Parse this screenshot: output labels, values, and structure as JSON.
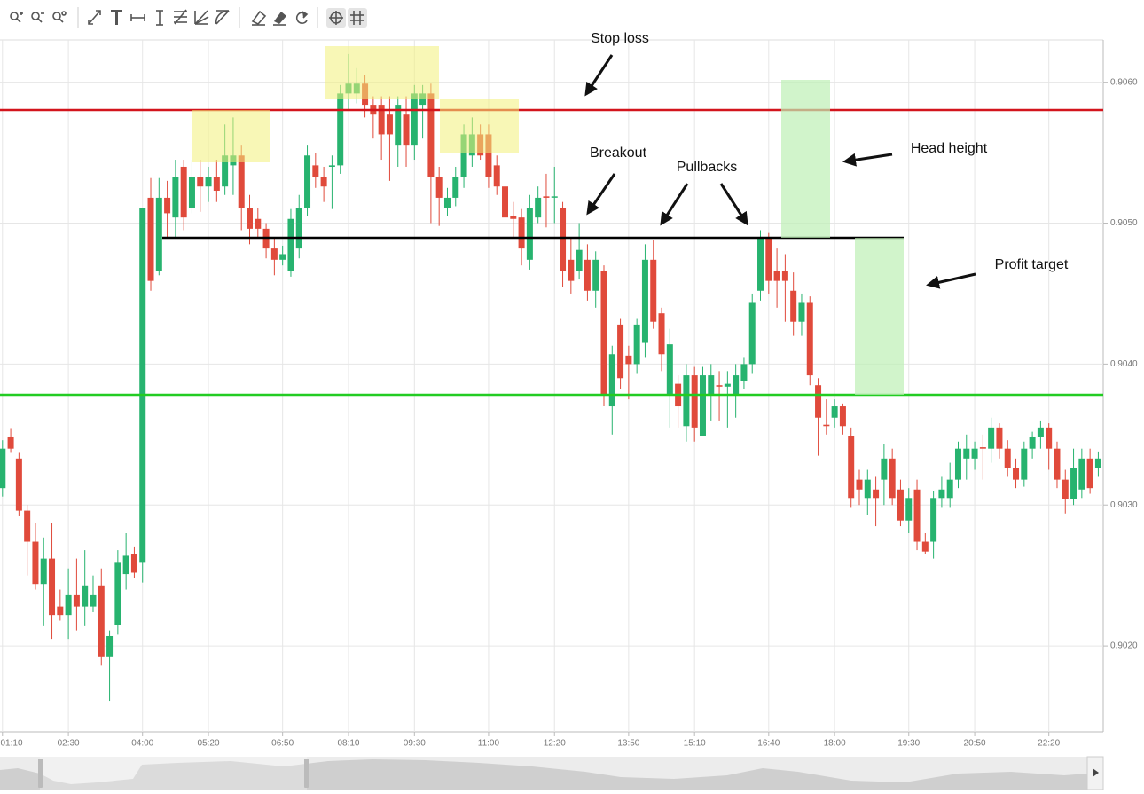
{
  "chart_data": {
    "type": "candlestick",
    "x": [
      "01:10",
      "01:20",
      "01:30",
      "01:40",
      "01:50",
      "02:00",
      "02:10",
      "02:20",
      "02:30",
      "02:40",
      "02:50",
      "03:00",
      "03:10",
      "03:20",
      "03:30",
      "03:40",
      "03:50",
      "04:00",
      "04:10",
      "04:20",
      "04:30",
      "04:40",
      "04:50",
      "05:00",
      "05:10",
      "05:20",
      "05:30",
      "05:40",
      "05:50",
      "06:00",
      "06:10",
      "06:20",
      "06:30",
      "06:40",
      "06:50",
      "07:00",
      "07:10",
      "07:20",
      "07:30",
      "07:40",
      "07:50",
      "08:00",
      "08:10",
      "08:20",
      "08:30",
      "08:40",
      "08:50",
      "09:00",
      "09:10",
      "09:20",
      "09:30",
      "09:40",
      "09:50",
      "10:00",
      "10:10",
      "10:20",
      "10:30",
      "10:40",
      "10:50",
      "11:00",
      "11:10",
      "11:20",
      "11:30",
      "11:40",
      "11:50",
      "12:00",
      "12:10",
      "12:20",
      "12:30",
      "12:40",
      "12:50",
      "13:00",
      "13:10",
      "13:20",
      "13:30",
      "13:40",
      "13:50",
      "14:00",
      "14:10",
      "14:20",
      "14:30",
      "14:40",
      "14:50",
      "15:00",
      "15:10",
      "15:20",
      "15:30",
      "15:40",
      "15:50",
      "16:00",
      "16:10",
      "16:20",
      "16:30",
      "16:40",
      "16:50",
      "17:00",
      "17:10",
      "17:20",
      "17:30",
      "17:40",
      "17:50",
      "18:00",
      "18:10",
      "18:20",
      "18:30",
      "18:40",
      "18:50",
      "19:00",
      "19:10",
      "19:20",
      "19:30",
      "19:40",
      "19:50",
      "20:00",
      "20:10",
      "20:20",
      "20:30",
      "20:40",
      "20:50",
      "21:00",
      "21:10",
      "21:20",
      "21:30",
      "21:40",
      "21:50",
      "22:00",
      "22:10",
      "22:20",
      "22:30",
      "22:40",
      "22:50",
      "23:00",
      "23:10",
      "23:20"
    ],
    "open": [
      0.90312,
      0.90348,
      0.90333,
      0.90296,
      0.90274,
      0.90244,
      0.90262,
      0.90228,
      0.90222,
      0.90236,
      0.90228,
      0.90228,
      0.90243,
      0.90192,
      0.90215,
      0.90251,
      0.90265,
      0.90259,
      0.90518,
      0.90466,
      0.90518,
      0.90504,
      0.9054,
      0.90511,
      0.90533,
      0.90526,
      0.90533,
      0.90526,
      0.90541,
      0.90548,
      0.90511,
      0.90503,
      0.90496,
      0.90482,
      0.90474,
      0.90466,
      0.90482,
      0.90511,
      0.90541,
      0.90533,
      0.9054,
      0.90541,
      0.90592,
      0.90592,
      0.90599,
      0.90584,
      0.90584,
      0.90577,
      0.90555,
      0.90577,
      0.90555,
      0.90584,
      0.90592,
      0.90533,
      0.90511,
      0.90518,
      0.90533,
      0.90548,
      0.90563,
      0.90563,
      0.90541,
      0.90526,
      0.90505,
      0.90504,
      0.90474,
      0.90504,
      0.90519,
      0.90519,
      0.90511,
      0.90474,
      0.90466,
      0.90474,
      0.90452,
      0.90466,
      0.9037,
      0.90428,
      0.90406,
      0.904,
      0.90415,
      0.90474,
      0.90436,
      0.90378,
      0.90386,
      0.90356,
      0.90392,
      0.90349,
      0.90378,
      0.90385,
      0.90384,
      0.90378,
      0.90388,
      0.904,
      0.90452,
      0.90489,
      0.90466,
      0.90466,
      0.90452,
      0.9043,
      0.90444,
      0.90385,
      0.90357,
      0.90362,
      0.9037,
      0.90349,
      0.90318,
      0.90305,
      0.90311,
      0.90318,
      0.90333,
      0.90311,
      0.90289,
      0.90311,
      0.90274,
      0.90274,
      0.90305,
      0.90305,
      0.90318,
      0.90333,
      0.90333,
      0.90341,
      0.9034,
      0.90355,
      0.9034,
      0.90326,
      0.90318,
      0.9034,
      0.90348,
      0.90355,
      0.9034,
      0.90318,
      0.90304,
      0.90311,
      0.90333,
      0.90326
    ],
    "high": [
      0.90346,
      0.90354,
      0.90337,
      0.903,
      0.90287,
      0.90277,
      0.90287,
      0.9024,
      0.90255,
      0.90262,
      0.90268,
      0.9025,
      0.90255,
      0.90211,
      0.90268,
      0.9028,
      0.9027,
      0.90511,
      0.90532,
      0.90532,
      0.9053,
      0.90545,
      0.90545,
      0.90545,
      0.90545,
      0.9054,
      0.90545,
      0.9057,
      0.90575,
      0.90555,
      0.9052,
      0.90511,
      0.905,
      0.9049,
      0.90484,
      0.9051,
      0.9052,
      0.90555,
      0.9055,
      0.9054,
      0.90548,
      0.90598,
      0.9062,
      0.9061,
      0.90605,
      0.9059,
      0.9059,
      0.9059,
      0.9059,
      0.9059,
      0.90598,
      0.90598,
      0.90599,
      0.9054,
      0.90525,
      0.9054,
      0.9057,
      0.90575,
      0.9057,
      0.9057,
      0.90548,
      0.90532,
      0.90515,
      0.9051,
      0.9052,
      0.90526,
      0.90535,
      0.9054,
      0.90515,
      0.9049,
      0.905,
      0.90485,
      0.9048,
      0.9047,
      0.90413,
      0.90432,
      0.90413,
      0.90432,
      0.90485,
      0.90488,
      0.9044,
      0.90425,
      0.90392,
      0.904,
      0.90398,
      0.90398,
      0.904,
      0.90395,
      0.90395,
      0.904,
      0.90405,
      0.9045,
      0.90495,
      0.90493,
      0.90482,
      0.90478,
      0.90465,
      0.9045,
      0.90448,
      0.9039,
      0.90375,
      0.90375,
      0.90372,
      0.90355,
      0.90325,
      0.90325,
      0.9032,
      0.90343,
      0.9034,
      0.90318,
      0.90312,
      0.90318,
      0.9028,
      0.9031,
      0.9032,
      0.9033,
      0.90345,
      0.9035,
      0.90345,
      0.9035,
      0.90362,
      0.90358,
      0.90346,
      0.90333,
      0.90345,
      0.90352,
      0.9036,
      0.90358,
      0.90345,
      0.90325,
      0.9034,
      0.9034,
      0.9034,
      0.90338
    ],
    "low": [
      0.90306,
      0.90337,
      0.90292,
      0.9025,
      0.9024,
      0.90214,
      0.90205,
      0.90218,
      0.90205,
      0.90211,
      0.90214,
      0.90224,
      0.90186,
      0.90161,
      0.90208,
      0.9024,
      0.90248,
      0.90245,
      0.90452,
      0.90463,
      0.9049,
      0.9049,
      0.90495,
      0.90507,
      0.90508,
      0.90515,
      0.90515,
      0.9052,
      0.9052,
      0.90495,
      0.90485,
      0.9049,
      0.90475,
      0.90463,
      0.9047,
      0.90462,
      0.90475,
      0.90505,
      0.90525,
      0.90515,
      0.9051,
      0.90535,
      0.9058,
      0.90585,
      0.90575,
      0.9056,
      0.90545,
      0.9053,
      0.9054,
      0.9054,
      0.90545,
      0.9056,
      0.905,
      0.90498,
      0.90505,
      0.90512,
      0.90525,
      0.9054,
      0.90545,
      0.90525,
      0.9052,
      0.90495,
      0.9049,
      0.9047,
      0.90467,
      0.905,
      0.90497,
      0.905,
      0.90455,
      0.9045,
      0.9046,
      0.90445,
      0.9044,
      0.9037,
      0.9035,
      0.90382,
      0.90375,
      0.90393,
      0.90405,
      0.90425,
      0.90395,
      0.90355,
      0.90355,
      0.90345,
      0.90345,
      0.90349,
      0.9036,
      0.9036,
      0.90355,
      0.90362,
      0.90382,
      0.90393,
      0.90445,
      0.9045,
      0.9044,
      0.9043,
      0.9042,
      0.9042,
      0.90385,
      0.90335,
      0.9035,
      0.90355,
      0.9035,
      0.90298,
      0.903,
      0.90293,
      0.90285,
      0.903,
      0.903,
      0.90285,
      0.9028,
      0.90268,
      0.90265,
      0.90262,
      0.90298,
      0.90298,
      0.90312,
      0.90318,
      0.90325,
      0.90318,
      0.9033,
      0.90333,
      0.9032,
      0.90312,
      0.90313,
      0.90333,
      0.9034,
      0.90325,
      0.90312,
      0.90294,
      0.903,
      0.90305,
      0.90308,
      0.9032
    ],
    "close": [
      0.9034,
      0.9034,
      0.90296,
      0.90274,
      0.90244,
      0.90262,
      0.90222,
      0.90222,
      0.90236,
      0.90228,
      0.90243,
      0.90236,
      0.90192,
      0.90207,
      0.90259,
      0.90264,
      0.90252,
      0.90511,
      0.90459,
      0.90518,
      0.90507,
      0.90533,
      0.90504,
      0.90533,
      0.90526,
      0.90533,
      0.90523,
      0.90548,
      0.90548,
      0.90511,
      0.90496,
      0.90496,
      0.90482,
      0.90474,
      0.90478,
      0.90503,
      0.90511,
      0.90548,
      0.90533,
      0.90526,
      0.90541,
      0.90592,
      0.90599,
      0.90599,
      0.90584,
      0.90577,
      0.90563,
      0.90563,
      0.90584,
      0.90555,
      0.90592,
      0.90592,
      0.90533,
      0.90518,
      0.90518,
      0.90533,
      0.90563,
      0.90563,
      0.90548,
      0.90533,
      0.90526,
      0.90504,
      0.90503,
      0.90482,
      0.90511,
      0.90518,
      0.90518,
      0.90519,
      0.90466,
      0.90459,
      0.90481,
      0.90452,
      0.90474,
      0.90378,
      0.90407,
      0.9039,
      0.904,
      0.90428,
      0.90474,
      0.9043,
      0.90407,
      0.90414,
      0.9037,
      0.90392,
      0.90355,
      0.90392,
      0.90392,
      0.90384,
      0.90386,
      0.90392,
      0.904,
      0.90444,
      0.90489,
      0.90459,
      0.90459,
      0.90459,
      0.9043,
      0.90444,
      0.90392,
      0.90362,
      0.90356,
      0.9037,
      0.90356,
      0.90305,
      0.90311,
      0.90318,
      0.90305,
      0.90333,
      0.90305,
      0.90289,
      0.90305,
      0.90274,
      0.90267,
      0.90305,
      0.90311,
      0.90318,
      0.9034,
      0.9034,
      0.9034,
      0.9034,
      0.90355,
      0.9034,
      0.90326,
      0.90318,
      0.9034,
      0.90348,
      0.90355,
      0.9034,
      0.90318,
      0.90304,
      0.90326,
      0.90333,
      0.90312,
      0.90333
    ],
    "up_color": "#27b36f",
    "down_color": "#e04a3b",
    "xlim": [
      "01:07",
      "23:26"
    ],
    "xticks": [
      "01:10",
      "02:30",
      "04:00",
      "05:20",
      "06:50",
      "08:10",
      "09:30",
      "11:00",
      "12:20",
      "13:50",
      "15:10",
      "16:40",
      "18:00",
      "19:30",
      "20:50",
      "22:20"
    ],
    "ylim": [
      0.90139,
      0.9063
    ],
    "yticks": [
      {
        "value": 0.906,
        "label": "0.9060"
      },
      {
        "value": 0.905,
        "label": "0.9050"
      },
      {
        "value": 0.904,
        "label": "0.9040"
      },
      {
        "value": 0.903,
        "label": "0.9030"
      },
      {
        "value": 0.902,
        "label": "0.9020"
      }
    ],
    "grid": true,
    "annotations": [
      "Stop loss",
      "Breakout",
      "Pullbacks",
      "Head height",
      "Profit target"
    ]
  }
}
